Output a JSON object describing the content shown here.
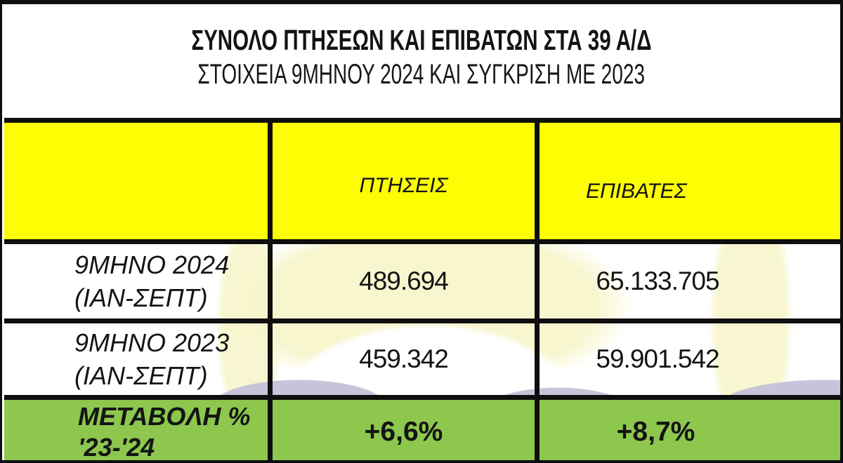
{
  "title": {
    "line1": "ΣΥΝΟΛΟ ΠΤΗΣΕΩΝ ΚΑΙ ΕΠΙΒΑΤΩΝ ΣΤΑ 39 Α/Δ",
    "line2": "ΣΤΟΙΧΕΙΑ 9ΜΗΝΟΥ 2024 ΚΑΙ ΣΥΓΚΡΙΣΗ ΜΕ 2023"
  },
  "table": {
    "header": {
      "col1": "",
      "col2": "ΠΤΗΣΕΙΣ",
      "col3": "ΕΠΙΒΑΤΕΣ"
    },
    "rows": [
      {
        "label_line1": "9ΜΗΝΟ 2024",
        "label_line2": "(ΙΑΝ-ΣΕΠΤ)",
        "flights": "489.694",
        "passengers": "65.133.705"
      },
      {
        "label_line1": "9ΜΗΝΟ 2023",
        "label_line2": "(ΙΑΝ-ΣΕΠΤ)",
        "flights": "459.342",
        "passengers": "59.901.542"
      },
      {
        "label_line1": "ΜΕΤΑΒΟΛΗ %",
        "label_line2": "'23-'24",
        "flights": "+6,6%",
        "passengers": "+8,7%"
      }
    ]
  },
  "colors": {
    "header_bg": "#FDFD04",
    "change_row_bg": "#8DC74E",
    "grid_line": "#0E0E0E",
    "watermark_pale_yellow": "#F7F5CB",
    "watermark_lavender": "#C7C4DA"
  },
  "chart_data": {
    "type": "table",
    "title": "ΣΥΝΟΛΟ ΠΤΗΣΕΩΝ ΚΑΙ ΕΠΙΒΑΤΩΝ ΣΤΑ 39 Α/Δ",
    "subtitle": "ΣΤΟΙΧΕΙΑ 9ΜΗΝΟΥ 2024 ΚΑΙ ΣΥΓΚΡΙΣΗ ΜΕ 2023",
    "columns": [
      "ΠΤΗΣΕΙΣ",
      "ΕΠΙΒΑΤΕΣ"
    ],
    "rows": [
      {
        "label": "9ΜΗΝΟ 2024 (ΙΑΝ-ΣΕΠΤ)",
        "flights": 489694,
        "passengers": 65133705
      },
      {
        "label": "9ΜΗΝΟ 2023 (ΙΑΝ-ΣΕΠΤ)",
        "flights": 459342,
        "passengers": 59901542
      },
      {
        "label": "ΜΕΤΑΒΟΛΗ % '23-'24",
        "flights_change_pct": "+6,6%",
        "passengers_change_pct": "+8,7%"
      }
    ]
  }
}
